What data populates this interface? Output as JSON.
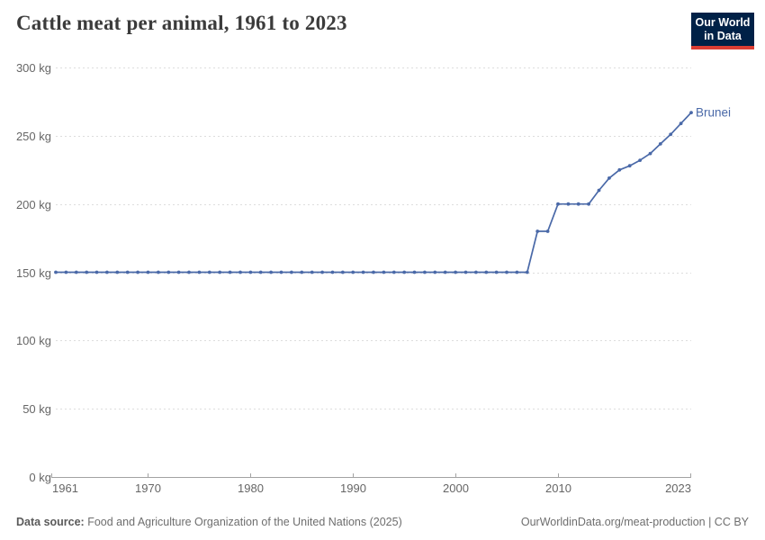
{
  "header": {
    "title": "Cattle meat per animal, 1961 to 2023",
    "logo": {
      "line1": "Our World",
      "line2": "in Data",
      "bg_color": "#002147",
      "accent_color": "#dc3d33"
    }
  },
  "chart_data": {
    "type": "line",
    "title": "Cattle meat per animal, 1961 to 2023",
    "unit": "kg",
    "xlim": [
      1961,
      2023
    ],
    "ylim": [
      0,
      300
    ],
    "grid": true,
    "legend_position": "end-of-line-label",
    "axis_color": "#a3a3a3",
    "gridline_color": "#dddddd",
    "tick_label_color": "#666666",
    "yticks": [
      {
        "value": 0,
        "label": "0 kg"
      },
      {
        "value": 50,
        "label": "50 kg"
      },
      {
        "value": 100,
        "label": "100 kg"
      },
      {
        "value": 150,
        "label": "150 kg"
      },
      {
        "value": 200,
        "label": "200 kg"
      },
      {
        "value": 250,
        "label": "250 kg"
      },
      {
        "value": 300,
        "label": "300 kg"
      }
    ],
    "xticks": [
      {
        "value": 1961,
        "label": "1961"
      },
      {
        "value": 1970,
        "label": "1970"
      },
      {
        "value": 1980,
        "label": "1980"
      },
      {
        "value": 1990,
        "label": "1990"
      },
      {
        "value": 2000,
        "label": "2000"
      },
      {
        "value": 2010,
        "label": "2010"
      },
      {
        "value": 2023,
        "label": "2023"
      }
    ],
    "series": [
      {
        "name": "Brunei",
        "color": "#4a69a8",
        "x": [
          1961,
          1962,
          1963,
          1964,
          1965,
          1966,
          1967,
          1968,
          1969,
          1970,
          1971,
          1972,
          1973,
          1974,
          1975,
          1976,
          1977,
          1978,
          1979,
          1980,
          1981,
          1982,
          1983,
          1984,
          1985,
          1986,
          1987,
          1988,
          1989,
          1990,
          1991,
          1992,
          1993,
          1994,
          1995,
          1996,
          1997,
          1998,
          1999,
          2000,
          2001,
          2002,
          2003,
          2004,
          2005,
          2006,
          2007,
          2008,
          2009,
          2010,
          2011,
          2012,
          2013,
          2014,
          2015,
          2016,
          2017,
          2018,
          2019,
          2020,
          2021,
          2022,
          2023
        ],
        "y": [
          150,
          150,
          150,
          150,
          150,
          150,
          150,
          150,
          150,
          150,
          150,
          150,
          150,
          150,
          150,
          150,
          150,
          150,
          150,
          150,
          150,
          150,
          150,
          150,
          150,
          150,
          150,
          150,
          150,
          150,
          150,
          150,
          150,
          150,
          150,
          150,
          150,
          150,
          150,
          150,
          150,
          150,
          150,
          150,
          150,
          150,
          150,
          180,
          180,
          200,
          200,
          200,
          200,
          210,
          219,
          225,
          228,
          232,
          237,
          244,
          251,
          259,
          267
        ]
      }
    ]
  },
  "footer": {
    "datasource_label": "Data source:",
    "datasource_text": "Food and Agriculture Organization of the United Nations (2025)",
    "link_text": "OurWorldinData.org/meat-production | CC BY"
  }
}
